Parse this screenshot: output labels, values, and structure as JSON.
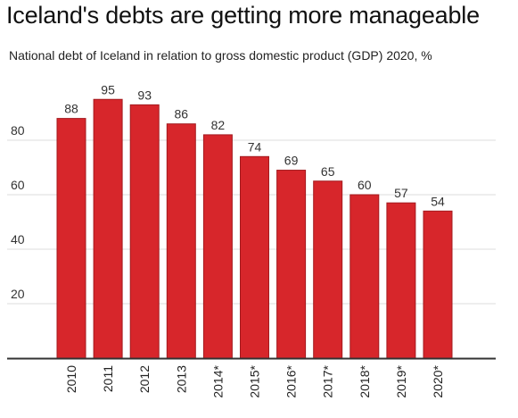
{
  "title": "Iceland's debts are getting more manageable",
  "subtitle": "National debt of Iceland in relation to gross domestic product (GDP) 2020, %",
  "colors": {
    "bar": "#d7262b",
    "bar_outline": "#a31a1e",
    "grid": "#dddddd",
    "axis": "#333333"
  },
  "chart_data": {
    "type": "bar",
    "title": "Iceland's debts are getting more manageable",
    "subtitle": "National debt of Iceland in relation to gross domestic product (GDP) 2020, %",
    "categories": [
      "2010",
      "2011",
      "2012",
      "2013",
      "2014*",
      "2015*",
      "2016*",
      "2017*",
      "2018*",
      "2019*",
      "2020*"
    ],
    "values": [
      88,
      95,
      93,
      86,
      82,
      74,
      69,
      65,
      60,
      57,
      54
    ],
    "yticks": [
      20,
      40,
      60,
      80
    ],
    "ylim": [
      0,
      100
    ],
    "grid": true,
    "legend": "none",
    "data_labels": true
  }
}
